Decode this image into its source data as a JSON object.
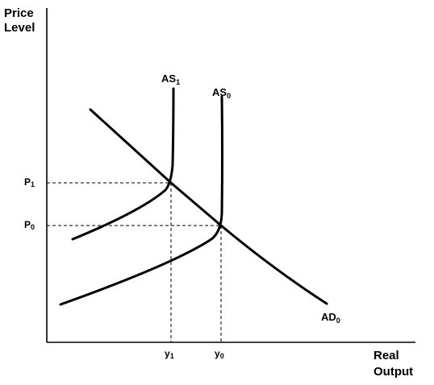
{
  "axes": {
    "y_title_line1": "Price",
    "y_title_line2": "Level",
    "x_title_line1": "Real",
    "x_title_line2": "Output"
  },
  "curves": {
    "as1": {
      "base": "AS",
      "sub": "1"
    },
    "as0": {
      "base": "AS",
      "sub": "0"
    },
    "ad0": {
      "base": "AD",
      "sub": "0"
    }
  },
  "price_ticks": {
    "p1": {
      "base": "P",
      "sub": "1"
    },
    "p0": {
      "base": "P",
      "sub": "0"
    }
  },
  "output_ticks": {
    "y1": {
      "base": "y",
      "sub": "1"
    },
    "y0": {
      "base": "y",
      "sub": "0"
    }
  }
}
